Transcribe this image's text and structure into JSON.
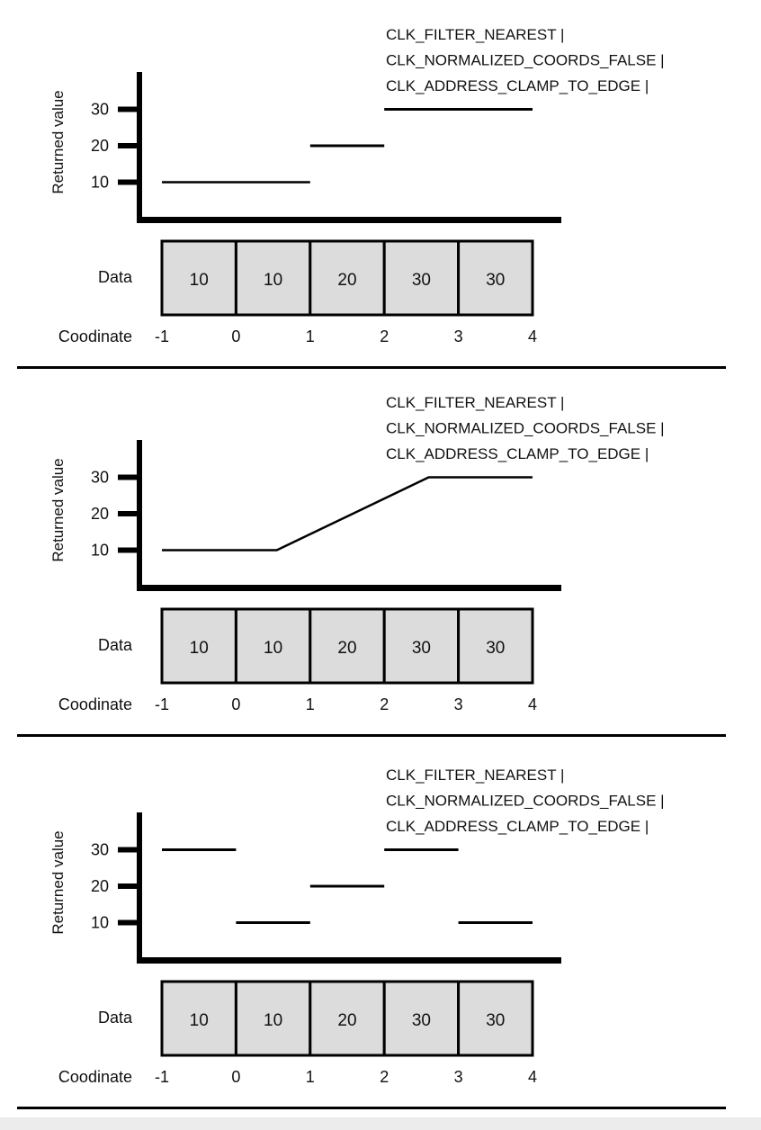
{
  "panels": [
    {
      "flags": [
        "CLK_FILTER_NEAREST |",
        "CLK_NORMALIZED_COORDS_FALSE |",
        "CLK_ADDRESS_CLAMP_TO_EDGE |"
      ],
      "y_axis_label": "Returned value",
      "y_ticks": [
        "30",
        "20",
        "10"
      ],
      "data_label": "Data",
      "data_cells": [
        "10",
        "10",
        "20",
        "30",
        "30"
      ],
      "coord_label": "Coodinate",
      "coord_ticks": [
        "-1",
        "0",
        "1",
        "2",
        "3",
        "4"
      ],
      "chart_data": {
        "type": "line",
        "style": "step",
        "x_range": [
          -1,
          4
        ],
        "y_ticks": [
          10,
          20,
          30
        ],
        "segments": [
          {
            "x": [
              -1,
              1
            ],
            "y": [
              10,
              10
            ]
          },
          {
            "x": [
              1,
              2
            ],
            "y": [
              20,
              20
            ]
          },
          {
            "x": [
              2,
              4
            ],
            "y": [
              30,
              30
            ]
          }
        ]
      }
    },
    {
      "flags": [
        "CLK_FILTER_NEAREST |",
        "CLK_NORMALIZED_COORDS_FALSE |",
        "CLK_ADDRESS_CLAMP_TO_EDGE |"
      ],
      "y_axis_label": "Returned value",
      "y_ticks": [
        "30",
        "20",
        "10"
      ],
      "data_label": "Data",
      "data_cells": [
        "10",
        "10",
        "20",
        "30",
        "30"
      ],
      "coord_label": "Coodinate",
      "coord_ticks": [
        "-1",
        "0",
        "1",
        "2",
        "3",
        "4"
      ],
      "chart_data": {
        "type": "line",
        "style": "polyline",
        "x_range": [
          -1,
          4
        ],
        "y_ticks": [
          10,
          20,
          30
        ],
        "points": [
          [
            -1,
            10
          ],
          [
            0.55,
            10
          ],
          [
            2.6,
            30
          ],
          [
            4,
            30
          ]
        ]
      }
    },
    {
      "flags": [
        "CLK_FILTER_NEAREST |",
        "CLK_NORMALIZED_COORDS_FALSE |",
        "CLK_ADDRESS_CLAMP_TO_EDGE |"
      ],
      "y_axis_label": "Returned value",
      "y_ticks": [
        "30",
        "20",
        "10"
      ],
      "data_label": "Data",
      "data_cells": [
        "10",
        "10",
        "20",
        "30",
        "30"
      ],
      "coord_label": "Coodinate",
      "coord_ticks": [
        "-1",
        "0",
        "1",
        "2",
        "3",
        "4"
      ],
      "chart_data": {
        "type": "line",
        "style": "step",
        "x_range": [
          -1,
          4
        ],
        "y_ticks": [
          10,
          20,
          30
        ],
        "segments": [
          {
            "x": [
              -1,
              0
            ],
            "y": [
              30,
              30
            ]
          },
          {
            "x": [
              0,
              1
            ],
            "y": [
              10,
              10
            ]
          },
          {
            "x": [
              1,
              2
            ],
            "y": [
              20,
              20
            ]
          },
          {
            "x": [
              2,
              3
            ],
            "y": [
              30,
              30
            ]
          },
          {
            "x": [
              3,
              4
            ],
            "y": [
              10,
              10
            ]
          }
        ]
      }
    }
  ]
}
